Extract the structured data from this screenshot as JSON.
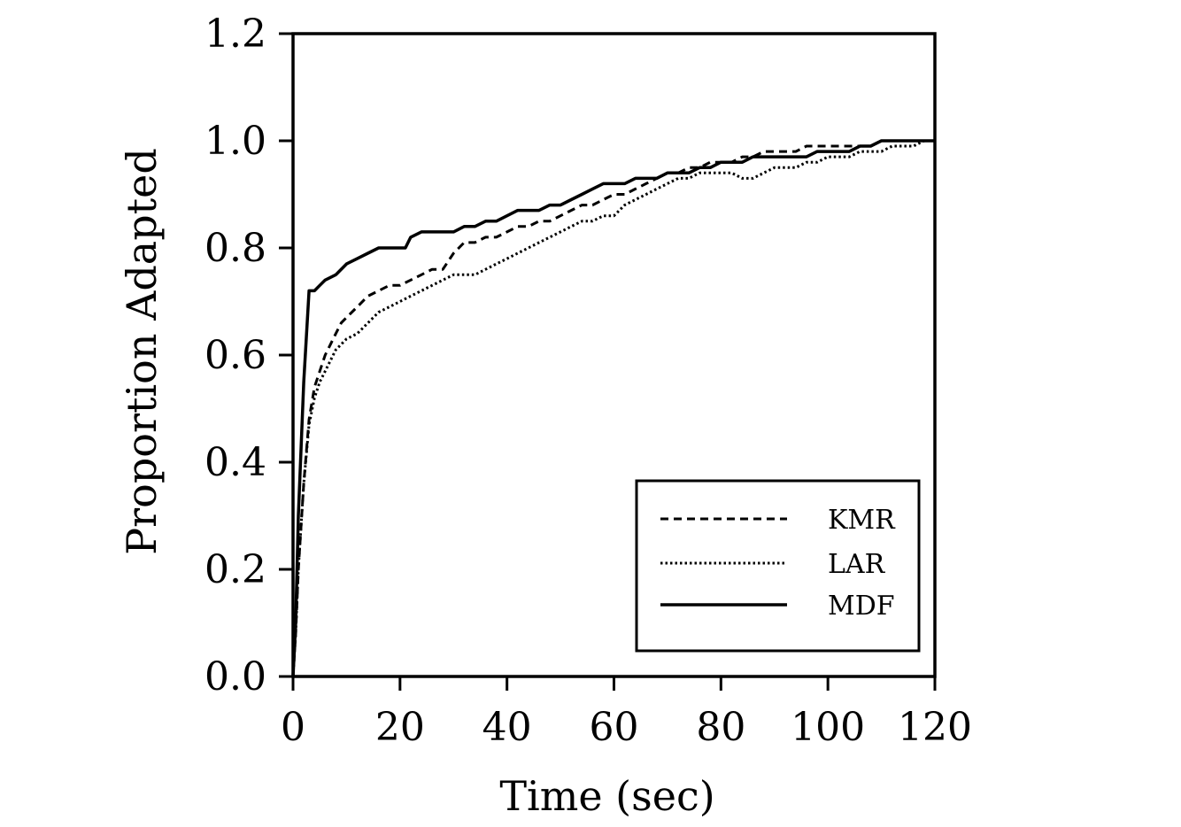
{
  "chart_data": {
    "type": "line",
    "title": "",
    "xlabel": "Time (sec)",
    "ylabel": "Proportion Adapted",
    "xlim": [
      0,
      120
    ],
    "ylim": [
      0,
      1.2
    ],
    "x_ticks": [
      "0",
      "20",
      "40",
      "60",
      "80",
      "100",
      "120"
    ],
    "y_ticks": [
      "0.0",
      "0.2",
      "0.4",
      "0.6",
      "0.8",
      "1.0",
      "1.2"
    ],
    "grid": false,
    "legend_position": "bottom-right",
    "series": [
      {
        "name": "KMR",
        "style": "dashed",
        "color": "#000000",
        "x": [
          0,
          0.5,
          1,
          2,
          3,
          4,
          5,
          6,
          7,
          8,
          9,
          10,
          12,
          14,
          16,
          18,
          20,
          22,
          24,
          26,
          28,
          30,
          32,
          34,
          36,
          38,
          40,
          42,
          44,
          46,
          48,
          50,
          52,
          54,
          56,
          58,
          60,
          62,
          64,
          66,
          68,
          70,
          72,
          74,
          76,
          78,
          80,
          82,
          84,
          86,
          88,
          90,
          92,
          94,
          96,
          98,
          100,
          102,
          104,
          106,
          108,
          110,
          112,
          114,
          116,
          118,
          120
        ],
        "y": [
          0,
          0.08,
          0.2,
          0.36,
          0.48,
          0.54,
          0.57,
          0.6,
          0.62,
          0.64,
          0.66,
          0.67,
          0.69,
          0.71,
          0.72,
          0.73,
          0.73,
          0.74,
          0.75,
          0.76,
          0.76,
          0.79,
          0.81,
          0.81,
          0.82,
          0.82,
          0.83,
          0.84,
          0.84,
          0.85,
          0.85,
          0.86,
          0.87,
          0.88,
          0.88,
          0.89,
          0.9,
          0.9,
          0.91,
          0.92,
          0.93,
          0.94,
          0.94,
          0.95,
          0.95,
          0.96,
          0.96,
          0.96,
          0.97,
          0.97,
          0.98,
          0.98,
          0.98,
          0.98,
          0.99,
          0.99,
          0.99,
          0.99,
          0.99,
          0.99,
          0.99,
          1.0,
          1.0,
          1.0,
          1.0,
          1.0,
          1.0
        ]
      },
      {
        "name": "LAR",
        "style": "dotted",
        "color": "#000000",
        "x": [
          0,
          0.5,
          1,
          2,
          3,
          4,
          5,
          6,
          7,
          8,
          9,
          10,
          12,
          14,
          16,
          18,
          20,
          22,
          24,
          26,
          28,
          30,
          32,
          34,
          36,
          38,
          40,
          42,
          44,
          46,
          48,
          50,
          52,
          54,
          56,
          58,
          60,
          62,
          64,
          66,
          68,
          70,
          72,
          74,
          76,
          78,
          80,
          82,
          84,
          86,
          88,
          90,
          92,
          94,
          96,
          98,
          100,
          102,
          104,
          106,
          108,
          110,
          112,
          114,
          116,
          118,
          120
        ],
        "y": [
          0,
          0.08,
          0.2,
          0.36,
          0.47,
          0.52,
          0.55,
          0.57,
          0.59,
          0.61,
          0.62,
          0.63,
          0.64,
          0.66,
          0.68,
          0.69,
          0.7,
          0.71,
          0.72,
          0.73,
          0.74,
          0.75,
          0.75,
          0.75,
          0.76,
          0.77,
          0.78,
          0.79,
          0.8,
          0.81,
          0.82,
          0.83,
          0.84,
          0.85,
          0.85,
          0.86,
          0.86,
          0.88,
          0.89,
          0.9,
          0.91,
          0.92,
          0.93,
          0.93,
          0.94,
          0.94,
          0.94,
          0.94,
          0.93,
          0.93,
          0.94,
          0.95,
          0.95,
          0.95,
          0.96,
          0.96,
          0.97,
          0.97,
          0.97,
          0.98,
          0.98,
          0.98,
          0.99,
          0.99,
          0.99,
          1.0,
          1.0
        ]
      },
      {
        "name": "MDF",
        "style": "solid",
        "color": "#000000",
        "x": [
          0,
          0.5,
          1,
          2,
          3,
          4,
          5,
          6,
          8,
          10,
          12,
          14,
          16,
          18,
          20,
          21,
          22,
          24,
          26,
          28,
          30,
          32,
          34,
          36,
          38,
          40,
          42,
          44,
          46,
          48,
          50,
          52,
          54,
          56,
          58,
          60,
          62,
          64,
          66,
          68,
          70,
          72,
          74,
          76,
          78,
          80,
          82,
          84,
          86,
          88,
          90,
          92,
          94,
          96,
          98,
          100,
          102,
          104,
          106,
          108,
          110,
          112,
          114,
          116,
          118,
          120
        ],
        "y": [
          0,
          0.1,
          0.3,
          0.55,
          0.72,
          0.72,
          0.73,
          0.74,
          0.75,
          0.77,
          0.78,
          0.79,
          0.8,
          0.8,
          0.8,
          0.8,
          0.82,
          0.83,
          0.83,
          0.83,
          0.83,
          0.84,
          0.84,
          0.85,
          0.85,
          0.86,
          0.87,
          0.87,
          0.87,
          0.88,
          0.88,
          0.89,
          0.9,
          0.91,
          0.92,
          0.92,
          0.92,
          0.93,
          0.93,
          0.93,
          0.94,
          0.94,
          0.94,
          0.95,
          0.95,
          0.96,
          0.96,
          0.96,
          0.97,
          0.97,
          0.97,
          0.97,
          0.97,
          0.97,
          0.98,
          0.98,
          0.98,
          0.98,
          0.99,
          0.99,
          1.0,
          1.0,
          1.0,
          1.0,
          1.0,
          1.0
        ]
      }
    ]
  }
}
